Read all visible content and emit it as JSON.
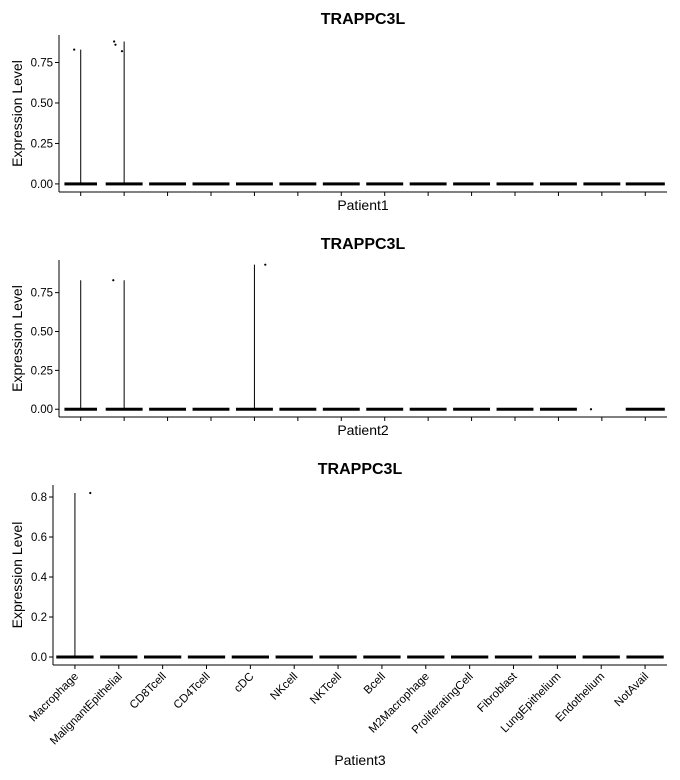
{
  "chart_data": [
    {
      "type": "violin",
      "title": "TRAPPC3L",
      "xlabel": "Patient1",
      "ylabel": "Expression Level",
      "ylim": [
        -0.05,
        0.92
      ],
      "yticks": [
        "0.00",
        "0.25",
        "0.50",
        "0.75"
      ],
      "ytick_values": [
        0,
        0.25,
        0.5,
        0.75
      ],
      "categories": [
        "Macrophage",
        "MalignantEpithelial",
        "CD8Tcell",
        "CD4Tcell",
        "cDC",
        "NKcell",
        "NKTcell",
        "Bcell",
        "M2Macrophage",
        "ProliferatingCell",
        "Fibroblast",
        "LungEpithelium",
        "Endothelium",
        "NotAvail"
      ],
      "show_category_labels": false,
      "max_values": [
        0.83,
        0.88,
        0,
        0,
        0,
        0,
        0,
        0,
        0,
        0,
        0,
        0,
        0,
        0
      ],
      "baseline_widths": [
        0.75,
        0.85,
        0.85,
        0.85,
        0.85,
        0.85,
        0.85,
        0.85,
        0.85,
        0.85,
        0.85,
        0.85,
        0.85,
        0.9
      ],
      "outlier_points": [
        {
          "category": "Macrophage",
          "offset": -0.15,
          "value": 0.83
        },
        {
          "category": "MalignantEpithelial",
          "offset": -0.23,
          "value": 0.88
        },
        {
          "category": "MalignantEpithelial",
          "offset": -0.2,
          "value": 0.86
        },
        {
          "category": "MalignantEpithelial",
          "offset": -0.05,
          "value": 0.82
        }
      ]
    },
    {
      "type": "violin",
      "title": "TRAPPC3L",
      "xlabel": "Patient2",
      "ylabel": "Expression Level",
      "ylim": [
        -0.05,
        0.96
      ],
      "yticks": [
        "0.00",
        "0.25",
        "0.50",
        "0.75"
      ],
      "ytick_values": [
        0,
        0.25,
        0.5,
        0.75
      ],
      "categories": [
        "Macrophage",
        "MalignantEpithelial",
        "CD8Tcell",
        "CD4Tcell",
        "cDC",
        "NKcell",
        "NKTcell",
        "Bcell",
        "M2Macrophage",
        "ProliferatingCell",
        "Fibroblast",
        "LungEpithelium",
        "Endothelium",
        "NotAvail"
      ],
      "show_category_labels": false,
      "max_values": [
        0.83,
        0.83,
        0,
        0,
        0.93,
        0,
        0,
        0,
        0,
        0,
        0,
        0,
        0,
        0
      ],
      "baseline_widths": [
        0.75,
        0.85,
        0.85,
        0.85,
        0.85,
        0.85,
        0.85,
        0.85,
        0.85,
        0.85,
        0.85,
        0.85,
        0,
        0.9
      ],
      "outlier_points": [
        {
          "category": "MalignantEpithelial",
          "offset": -0.25,
          "value": 0.83
        },
        {
          "category": "cDC",
          "offset": 0.25,
          "value": 0.93
        },
        {
          "category": "Endothelium",
          "offset": -0.25,
          "value": 0
        }
      ]
    },
    {
      "type": "violin",
      "title": "TRAPPC3L",
      "xlabel": "Patient3",
      "ylabel": "Expression Level",
      "ylim": [
        -0.04,
        0.86
      ],
      "yticks": [
        "0.0",
        "0.2",
        "0.4",
        "0.6",
        "0.8"
      ],
      "ytick_values": [
        0,
        0.2,
        0.4,
        0.6,
        0.8
      ],
      "categories": [
        "Macrophage",
        "MalignantEpithelial",
        "CD8Tcell",
        "CD4Tcell",
        "cDC",
        "NKcell",
        "NKTcell",
        "Bcell",
        "M2Macrophage",
        "ProliferatingCell",
        "Fibroblast",
        "LungEpithelium",
        "Endothelium",
        "NotAvail"
      ],
      "show_category_labels": true,
      "max_values": [
        0.82,
        0,
        0,
        0,
        0,
        0,
        0,
        0,
        0,
        0,
        0,
        0,
        0,
        0
      ],
      "baseline_widths": [
        0.85,
        0.85,
        0.85,
        0.85,
        0.85,
        0.85,
        0.85,
        0.85,
        0.85,
        0.85,
        0.85,
        0.85,
        0.85,
        0.85
      ],
      "outlier_points": [
        {
          "category": "Macrophage",
          "offset": 0.35,
          "value": 0.82
        }
      ]
    }
  ]
}
